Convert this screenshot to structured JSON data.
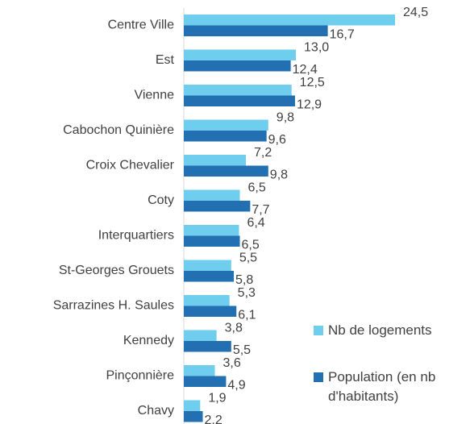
{
  "chart_data": {
    "type": "bar",
    "orientation": "horizontal",
    "categories": [
      "Centre Ville",
      "Est",
      "Vienne",
      "Cabochon Quinière",
      "Croix Chevalier",
      "Coty",
      "Interquartiers",
      "St-Georges Grouets",
      "Sarrazines H. Saules",
      "Kennedy",
      "Pinçonnière",
      "Chavy"
    ],
    "series": [
      {
        "name": "Nb de logements",
        "color": "#6fcdee",
        "values": [
          24.5,
          13.0,
          12.5,
          9.8,
          7.2,
          6.5,
          6.4,
          5.5,
          5.3,
          3.8,
          3.6,
          1.9
        ],
        "value_labels": [
          "24,5",
          "13,0",
          "12,5",
          "9,8",
          "7,2",
          "6,5",
          "6,4",
          "5,5",
          "5,3",
          "3,8",
          "3,6",
          "1,9"
        ]
      },
      {
        "name": "Population (en nb d'habitants)",
        "color": "#226fb2",
        "values": [
          16.7,
          12.4,
          12.9,
          9.6,
          9.8,
          7.7,
          6.5,
          5.8,
          6.1,
          5.5,
          4.9,
          2.2
        ],
        "value_labels": [
          "16,7",
          "12,4",
          "12,9",
          "9,6",
          "9,8",
          "7,7",
          "6,5",
          "5,8",
          "6,1",
          "5,5",
          "4,9",
          "2,2"
        ]
      }
    ],
    "legend": "right"
  }
}
